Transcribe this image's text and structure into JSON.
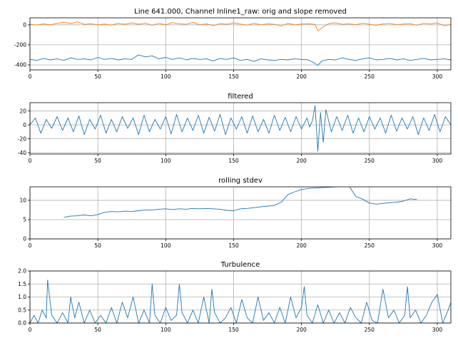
{
  "chart_data": [
    {
      "type": "line",
      "title": "Line 641.000, Channel Inline1_raw: orig and slope removed",
      "xlim": [
        0,
        310
      ],
      "ylim": [
        -450,
        70
      ],
      "xticks": [
        0,
        50,
        100,
        150,
        200,
        250,
        300
      ],
      "yticks": [
        0,
        -200,
        -400
      ],
      "grid": true,
      "series": [
        {
          "color": "#ff7f0e",
          "x": [
            0,
            5,
            10,
            15,
            20,
            25,
            30,
            35,
            40,
            45,
            50,
            55,
            60,
            65,
            70,
            75,
            80,
            85,
            90,
            95,
            100,
            105,
            110,
            115,
            120,
            125,
            130,
            135,
            140,
            145,
            150,
            155,
            160,
            165,
            170,
            175,
            180,
            185,
            190,
            195,
            200,
            205,
            210,
            212,
            215,
            220,
            225,
            230,
            235,
            240,
            245,
            250,
            255,
            260,
            265,
            270,
            275,
            280,
            285,
            290,
            295,
            300,
            305,
            310
          ],
          "values": [
            5,
            -2,
            10,
            0,
            15,
            28,
            12,
            30,
            5,
            10,
            0,
            8,
            -3,
            15,
            5,
            20,
            5,
            18,
            -5,
            15,
            0,
            22,
            10,
            5,
            25,
            0,
            10,
            -8,
            12,
            5,
            20,
            8,
            -3,
            15,
            0,
            10,
            5,
            -12,
            15,
            0,
            8,
            10,
            5,
            -60,
            -30,
            12,
            20,
            5,
            10,
            0,
            18,
            5,
            -5,
            10,
            15,
            0,
            8,
            12,
            -5,
            15,
            10,
            20,
            -10,
            5
          ]
        },
        {
          "color": "#1f77b4",
          "x": [
            0,
            5,
            10,
            15,
            20,
            25,
            30,
            35,
            40,
            45,
            50,
            55,
            60,
            65,
            70,
            75,
            80,
            85,
            90,
            95,
            100,
            105,
            110,
            115,
            120,
            125,
            130,
            135,
            140,
            145,
            150,
            155,
            160,
            165,
            170,
            175,
            180,
            185,
            190,
            195,
            200,
            205,
            210,
            212,
            215,
            220,
            225,
            230,
            235,
            240,
            245,
            250,
            255,
            260,
            265,
            270,
            275,
            280,
            285,
            290,
            295,
            300,
            305,
            310
          ],
          "values": [
            -345,
            -355,
            -335,
            -350,
            -340,
            -355,
            -330,
            -345,
            -340,
            -350,
            -325,
            -345,
            -335,
            -350,
            -340,
            -345,
            -300,
            -320,
            -310,
            -340,
            -325,
            -345,
            -330,
            -350,
            -335,
            -345,
            -340,
            -360,
            -335,
            -345,
            -330,
            -355,
            -345,
            -365,
            -340,
            -350,
            -355,
            -345,
            -350,
            -340,
            -345,
            -350,
            -385,
            -405,
            -360,
            -345,
            -350,
            -330,
            -345,
            -355,
            -340,
            -330,
            -350,
            -345,
            -335,
            -350,
            -340,
            -355,
            -345,
            -335,
            -350,
            -345,
            -340,
            -350
          ]
        }
      ]
    },
    {
      "type": "line",
      "title": "filtered",
      "xlim": [
        0,
        310
      ],
      "ylim": [
        -42,
        32
      ],
      "xticks": [
        0,
        50,
        100,
        150,
        200,
        250,
        300
      ],
      "yticks": [
        20,
        0,
        -20,
        -40
      ],
      "grid": true,
      "series": [
        {
          "color": "#1f77b4",
          "x": [
            0,
            4,
            8,
            12,
            16,
            20,
            24,
            28,
            32,
            36,
            40,
            44,
            48,
            52,
            56,
            60,
            64,
            68,
            72,
            76,
            80,
            84,
            88,
            92,
            96,
            100,
            104,
            108,
            112,
            116,
            120,
            124,
            128,
            132,
            136,
            140,
            144,
            148,
            152,
            156,
            160,
            164,
            168,
            172,
            176,
            180,
            184,
            188,
            192,
            196,
            200,
            204,
            206,
            208,
            210,
            212,
            214,
            216,
            218,
            222,
            226,
            230,
            234,
            238,
            242,
            246,
            250,
            254,
            258,
            262,
            266,
            270,
            274,
            278,
            282,
            286,
            290,
            294,
            298,
            302,
            306,
            310
          ],
          "values": [
            0,
            10,
            -12,
            8,
            -5,
            12,
            -8,
            10,
            -10,
            13,
            -14,
            8,
            -6,
            14,
            -12,
            8,
            -10,
            12,
            -5,
            10,
            -14,
            14,
            -10,
            8,
            -6,
            12,
            -13,
            15,
            -10,
            10,
            -8,
            14,
            -12,
            11,
            -9,
            15,
            -14,
            10,
            -6,
            12,
            -12,
            13,
            -10,
            8,
            -12,
            14,
            -8,
            11,
            -10,
            12,
            -6,
            10,
            -3,
            6,
            28,
            -38,
            18,
            -25,
            22,
            -10,
            12,
            -8,
            14,
            -12,
            10,
            -10,
            12,
            -6,
            10,
            -12,
            14,
            -9,
            10,
            -6,
            12,
            -14,
            10,
            -8,
            15,
            -10,
            12,
            0
          ]
        }
      ]
    },
    {
      "type": "line",
      "title": "rolling stdev",
      "xlim": [
        0,
        310
      ],
      "ylim": [
        0,
        13.5
      ],
      "xticks": [
        0,
        50,
        100,
        150,
        200,
        250,
        300
      ],
      "yticks": [
        0,
        5,
        10
      ],
      "grid": true,
      "series": [
        {
          "color": "#1f77b4",
          "x": [
            25,
            30,
            35,
            40,
            45,
            50,
            55,
            60,
            65,
            70,
            75,
            80,
            85,
            90,
            95,
            100,
            105,
            110,
            115,
            120,
            125,
            130,
            135,
            140,
            145,
            150,
            155,
            160,
            165,
            170,
            175,
            180,
            185,
            190,
            195,
            200,
            205,
            210,
            215,
            220,
            225,
            230,
            235,
            240,
            245,
            250,
            255,
            260,
            265,
            270,
            275,
            280,
            285
          ],
          "values": [
            5.6,
            5.9,
            6.0,
            6.2,
            6.0,
            6.3,
            6.9,
            7.1,
            7.0,
            7.2,
            7.1,
            7.3,
            7.5,
            7.5,
            7.7,
            7.8,
            7.6,
            7.8,
            7.7,
            7.9,
            7.8,
            7.9,
            7.8,
            7.7,
            7.4,
            7.3,
            7.8,
            7.9,
            8.1,
            8.3,
            8.5,
            8.7,
            9.5,
            11.5,
            12.2,
            12.8,
            13.1,
            13.2,
            13.3,
            13.4,
            13.5,
            13.6,
            13.7,
            11.0,
            10.3,
            9.3,
            9.0,
            9.2,
            9.4,
            9.5,
            9.8,
            10.4,
            10.2
          ]
        }
      ]
    },
    {
      "type": "line",
      "title": "Turbulence",
      "xlim": [
        0,
        310
      ],
      "ylim": [
        0,
        2.0
      ],
      "xticks": [
        0,
        50,
        100,
        150,
        200,
        250,
        300
      ],
      "yticks": [
        0.0,
        0.5,
        1.0,
        1.5,
        2.0
      ],
      "grid": true,
      "series": [
        {
          "color": "#1f77b4",
          "x": [
            0,
            3,
            6,
            9,
            12,
            13,
            16,
            20,
            24,
            28,
            30,
            33,
            36,
            40,
            44,
            48,
            52,
            56,
            60,
            64,
            68,
            72,
            76,
            80,
            84,
            88,
            90,
            92,
            96,
            100,
            104,
            108,
            110,
            112,
            116,
            120,
            124,
            128,
            132,
            134,
            136,
            140,
            144,
            148,
            152,
            156,
            160,
            164,
            168,
            172,
            176,
            180,
            184,
            188,
            192,
            196,
            200,
            202,
            204,
            208,
            212,
            216,
            220,
            224,
            228,
            232,
            236,
            240,
            244,
            248,
            252,
            256,
            260,
            264,
            268,
            272,
            276,
            278,
            280,
            284,
            288,
            292,
            296,
            300,
            304,
            308,
            310
          ],
          "values": [
            0,
            0.3,
            0,
            0.5,
            0.2,
            1.65,
            0.3,
            0,
            0.4,
            0,
            1.0,
            0.2,
            0.8,
            0,
            0.5,
            0,
            0.3,
            0,
            0.6,
            0,
            0.8,
            0.2,
            1.0,
            0,
            0.5,
            0,
            1.5,
            0.3,
            0,
            0.6,
            0.1,
            0.3,
            1.5,
            0.4,
            0,
            0.5,
            0,
            1.0,
            0,
            1.3,
            0.4,
            0,
            0.2,
            0.6,
            0,
            0.9,
            0.2,
            0,
            1.0,
            0.1,
            0.4,
            0,
            0.6,
            0,
            1.0,
            0.2,
            0.6,
            1.4,
            0.3,
            0,
            0.7,
            0,
            0.5,
            0,
            0.4,
            0,
            0.6,
            0.2,
            0,
            0.8,
            0.1,
            0,
            1.3,
            0.2,
            0.5,
            0,
            0.3,
            1.4,
            0.2,
            0.5,
            0,
            0.3,
            0.8,
            1.1,
            0,
            0.5,
            0.8
          ]
        }
      ]
    }
  ]
}
